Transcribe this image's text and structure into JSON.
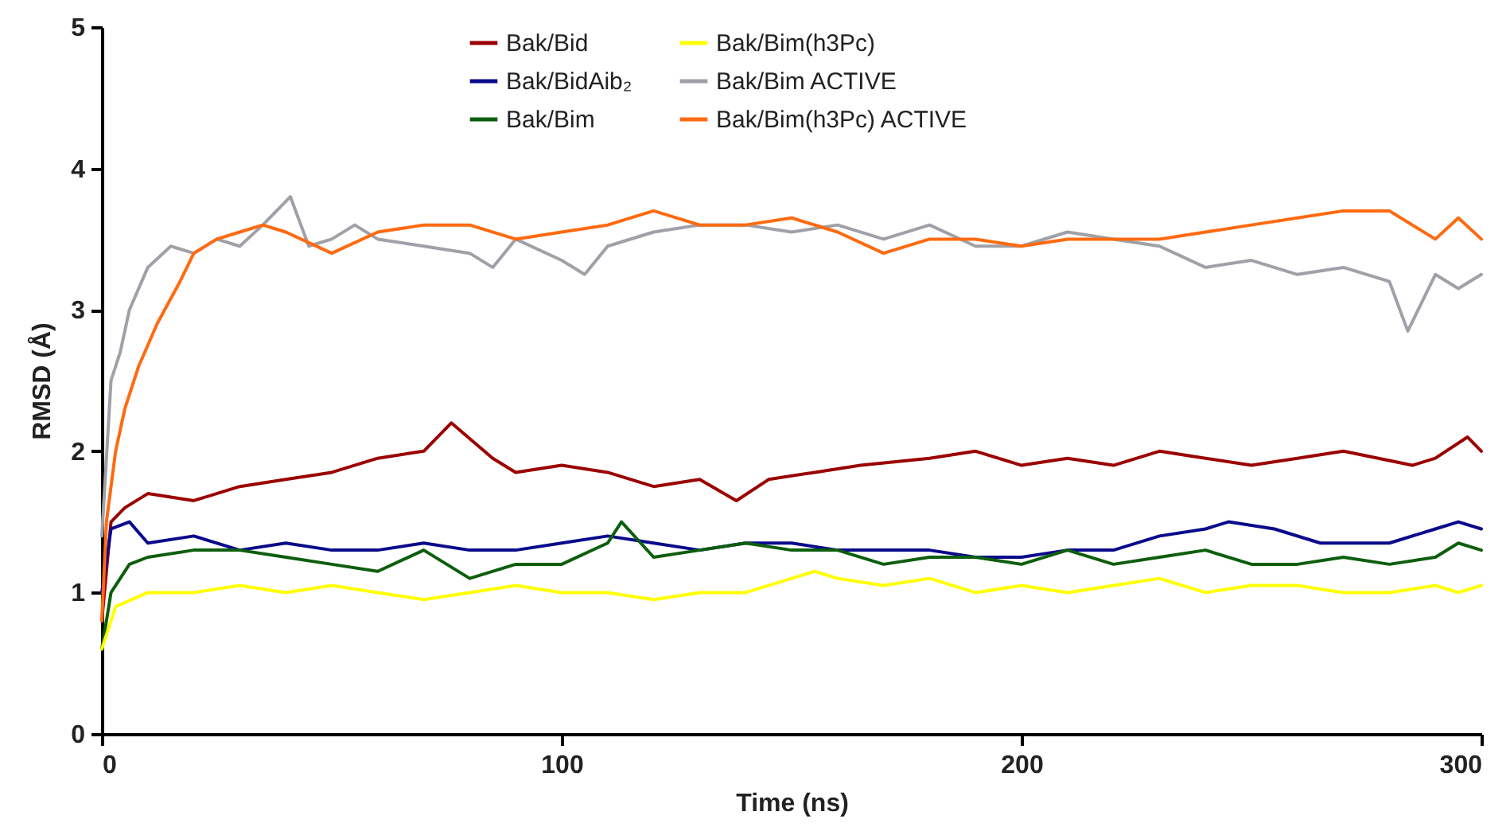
{
  "chart_data": {
    "type": "line",
    "xlabel": "Time (ns)",
    "ylabel": "RMSD (Å)",
    "xlim": [
      0,
      300
    ],
    "ylim": [
      0,
      5
    ],
    "xticks": [
      0,
      100,
      200,
      300
    ],
    "yticks": [
      0,
      1,
      2,
      3,
      4,
      5
    ],
    "grid": false,
    "legend": "top",
    "marker": "none",
    "line_style": "solid",
    "series": [
      {
        "name": "Bak/Bid",
        "color": "#9b0000",
        "x": [
          0,
          2,
          5,
          10,
          20,
          30,
          40,
          50,
          60,
          70,
          76,
          85,
          90,
          100,
          110,
          120,
          130,
          138,
          145,
          155,
          165,
          180,
          190,
          200,
          210,
          220,
          230,
          240,
          250,
          260,
          270,
          285,
          290,
          297,
          300
        ],
        "values": [
          0.8,
          1.5,
          1.6,
          1.7,
          1.65,
          1.75,
          1.8,
          1.85,
          1.95,
          2.0,
          2.2,
          1.95,
          1.85,
          1.9,
          1.85,
          1.75,
          1.8,
          1.65,
          1.8,
          1.85,
          1.9,
          1.95,
          2.0,
          1.9,
          1.95,
          1.9,
          2.0,
          1.95,
          1.9,
          1.95,
          2.0,
          1.9,
          1.95,
          2.1,
          2.0
        ]
      },
      {
        "name": "Bak/BidAib₂",
        "color": "#0a0a8c",
        "x": [
          0,
          2,
          6,
          10,
          20,
          30,
          40,
          50,
          60,
          70,
          80,
          90,
          100,
          110,
          120,
          130,
          140,
          150,
          160,
          170,
          180,
          190,
          200,
          210,
          220,
          230,
          240,
          245,
          255,
          265,
          280,
          290,
          295,
          300
        ],
        "values": [
          1.0,
          1.45,
          1.5,
          1.35,
          1.4,
          1.3,
          1.35,
          1.3,
          1.3,
          1.35,
          1.3,
          1.3,
          1.35,
          1.4,
          1.35,
          1.3,
          1.35,
          1.35,
          1.3,
          1.3,
          1.3,
          1.25,
          1.25,
          1.3,
          1.3,
          1.4,
          1.45,
          1.5,
          1.45,
          1.35,
          1.35,
          1.45,
          1.5,
          1.45
        ]
      },
      {
        "name": "Bak/Bim",
        "color": "#0d5e0d",
        "x": [
          0,
          2,
          6,
          10,
          20,
          30,
          40,
          50,
          60,
          70,
          80,
          90,
          100,
          110,
          113,
          120,
          130,
          140,
          150,
          160,
          170,
          180,
          190,
          200,
          210,
          220,
          230,
          240,
          250,
          260,
          270,
          280,
          290,
          295,
          300
        ],
        "values": [
          0.6,
          1.0,
          1.2,
          1.25,
          1.3,
          1.3,
          1.25,
          1.2,
          1.15,
          1.3,
          1.1,
          1.2,
          1.2,
          1.35,
          1.5,
          1.25,
          1.3,
          1.35,
          1.3,
          1.3,
          1.2,
          1.25,
          1.25,
          1.2,
          1.3,
          1.2,
          1.25,
          1.3,
          1.2,
          1.2,
          1.25,
          1.2,
          1.25,
          1.35,
          1.3
        ]
      },
      {
        "name": "Bak/Bim(h3Pc)",
        "color": "#ffff00",
        "x": [
          0,
          3,
          10,
          20,
          30,
          40,
          50,
          60,
          70,
          80,
          90,
          100,
          110,
          120,
          130,
          140,
          150,
          155,
          160,
          170,
          180,
          190,
          200,
          210,
          220,
          230,
          240,
          250,
          260,
          270,
          280,
          290,
          295,
          300
        ],
        "values": [
          0.6,
          0.9,
          1.0,
          1.0,
          1.05,
          1.0,
          1.05,
          1.0,
          0.95,
          1.0,
          1.05,
          1.0,
          1.0,
          0.95,
          1.0,
          1.0,
          1.1,
          1.15,
          1.1,
          1.05,
          1.1,
          1.0,
          1.05,
          1.0,
          1.05,
          1.1,
          1.0,
          1.05,
          1.05,
          1.0,
          1.0,
          1.05,
          1.0,
          1.05
        ]
      },
      {
        "name": "Bak/Bim ACTIVE",
        "color": "#a0a0a8",
        "x": [
          0,
          2,
          4,
          6,
          10,
          15,
          20,
          25,
          30,
          35,
          41,
          45,
          50,
          55,
          60,
          70,
          80,
          85,
          90,
          100,
          105,
          110,
          120,
          130,
          140,
          150,
          160,
          170,
          180,
          190,
          200,
          210,
          220,
          230,
          240,
          250,
          260,
          270,
          280,
          284,
          290,
          295,
          300
        ],
        "values": [
          1.4,
          2.5,
          2.7,
          3.0,
          3.3,
          3.45,
          3.4,
          3.5,
          3.45,
          3.6,
          3.8,
          3.45,
          3.5,
          3.6,
          3.5,
          3.45,
          3.4,
          3.3,
          3.5,
          3.35,
          3.25,
          3.45,
          3.55,
          3.6,
          3.6,
          3.55,
          3.6,
          3.5,
          3.6,
          3.45,
          3.45,
          3.55,
          3.5,
          3.45,
          3.3,
          3.35,
          3.25,
          3.3,
          3.2,
          2.85,
          3.25,
          3.15,
          3.25
        ]
      },
      {
        "name": "Bak/Bim(h3Pc) ACTIVE",
        "color": "#ff6a10",
        "x": [
          0,
          1,
          3,
          5,
          8,
          12,
          17,
          20,
          25,
          30,
          35,
          40,
          50,
          60,
          70,
          80,
          90,
          100,
          110,
          120,
          130,
          140,
          150,
          160,
          170,
          180,
          190,
          200,
          210,
          220,
          230,
          240,
          250,
          260,
          270,
          280,
          290,
          295,
          300
        ],
        "values": [
          0.8,
          1.5,
          2.0,
          2.3,
          2.6,
          2.9,
          3.2,
          3.4,
          3.5,
          3.55,
          3.6,
          3.55,
          3.4,
          3.55,
          3.6,
          3.6,
          3.5,
          3.55,
          3.6,
          3.7,
          3.6,
          3.6,
          3.65,
          3.55,
          3.4,
          3.5,
          3.5,
          3.45,
          3.5,
          3.5,
          3.5,
          3.55,
          3.6,
          3.65,
          3.7,
          3.7,
          3.5,
          3.65,
          3.5
        ]
      }
    ]
  }
}
